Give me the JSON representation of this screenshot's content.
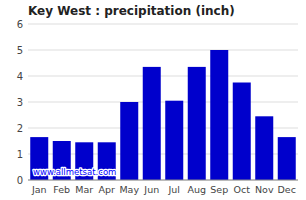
{
  "chart_data": {
    "type": "bar",
    "title": "Key West : precipitation (inch)",
    "categories": [
      "Jan",
      "Feb",
      "Mar",
      "Apr",
      "May",
      "Jun",
      "Jul",
      "Aug",
      "Sep",
      "Oct",
      "Nov",
      "Dec"
    ],
    "values": [
      1.65,
      1.5,
      1.45,
      1.45,
      3.0,
      4.35,
      3.05,
      4.35,
      5.0,
      3.75,
      2.45,
      1.65
    ],
    "color": "#0000CC",
    "ylim": [
      0,
      6
    ],
    "yticks": [
      0,
      1,
      2,
      3,
      4,
      5,
      6
    ],
    "grid": true,
    "annotations": [
      "www.allmetsat.com"
    ]
  }
}
